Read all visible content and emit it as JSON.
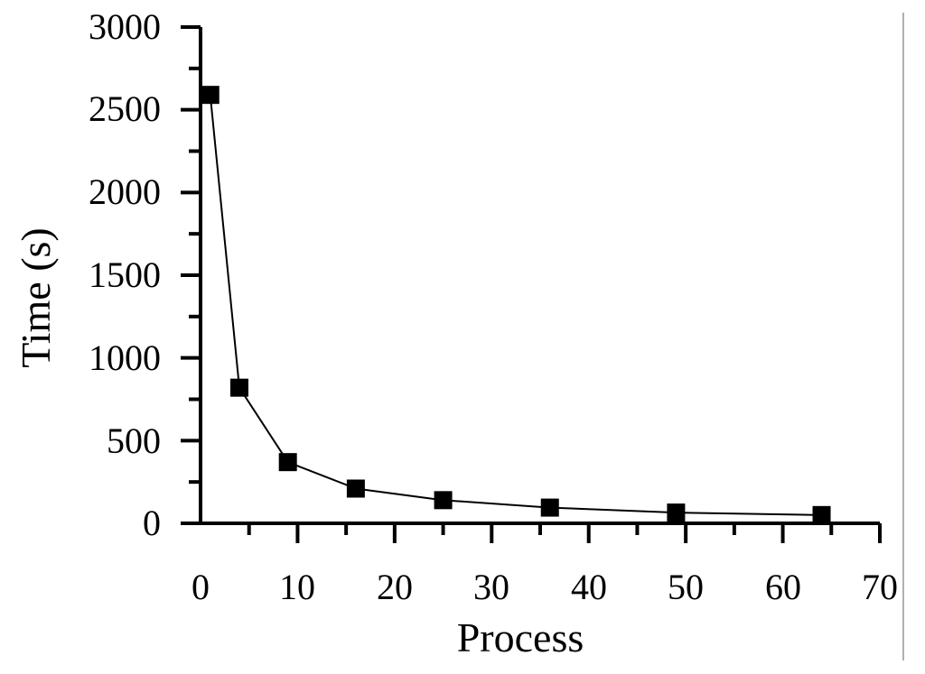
{
  "chart_data": {
    "type": "line",
    "title": "",
    "xlabel": "Process",
    "ylabel": "Time (s)",
    "xlim": [
      0,
      70
    ],
    "ylim": [
      0,
      3000
    ],
    "x_ticks": [
      "0",
      "10",
      "20",
      "30",
      "40",
      "50",
      "60",
      "70"
    ],
    "y_ticks": [
      "0",
      "500",
      "1000",
      "1500",
      "2000",
      "2500",
      "3000"
    ],
    "grid": false,
    "legend": "none",
    "marker": "square",
    "line_color": "#000000",
    "series": [
      {
        "x": [
          1,
          4,
          9,
          16,
          25,
          36,
          49,
          64
        ],
        "y": [
          2590,
          820,
          370,
          210,
          140,
          95,
          65,
          50
        ]
      }
    ]
  }
}
